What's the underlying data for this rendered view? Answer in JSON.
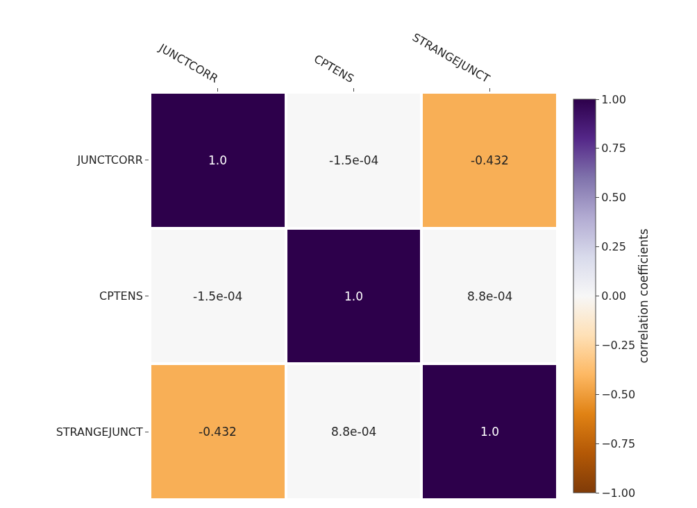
{
  "chart_data": {
    "type": "heatmap",
    "categories": [
      "JUNCTCORR",
      "CPTENS",
      "STRANGEJUNCT"
    ],
    "y_categories": [
      "JUNCTCORR",
      "CPTENS",
      "STRANGEJUNCT"
    ],
    "cells": [
      [
        1.0,
        -0.00015,
        -0.432
      ],
      [
        -0.00015,
        1.0,
        0.00088
      ],
      [
        -0.432,
        0.00088,
        1.0
      ]
    ],
    "cell_labels": [
      [
        "1.0",
        "-1.5e-04",
        "-0.432"
      ],
      [
        "-1.5e-04",
        "1.0",
        "8.8e-04"
      ],
      [
        "-0.432",
        "8.8e-04",
        "1.0"
      ]
    ],
    "clim": [
      -1,
      1
    ],
    "cticks": [
      {
        "value": -1,
        "label": "−1.00"
      },
      {
        "value": -0.75,
        "label": "−0.75"
      },
      {
        "value": -0.5,
        "label": "−0.50"
      },
      {
        "value": -0.25,
        "label": "−0.25"
      },
      {
        "value": 0,
        "label": "0.00"
      },
      {
        "value": 0.25,
        "label": "0.25"
      },
      {
        "value": 0.5,
        "label": "0.50"
      },
      {
        "value": 0.75,
        "label": "0.75"
      },
      {
        "value": 1,
        "label": "1.00"
      }
    ],
    "clabel": "correlation coefficients"
  }
}
